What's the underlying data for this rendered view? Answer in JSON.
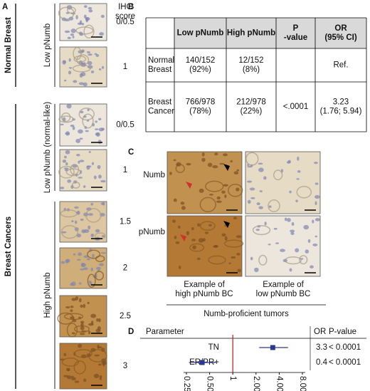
{
  "panel_a": {
    "label": "A",
    "header": [
      "IHC",
      "score"
    ],
    "groups": [
      {
        "name": "Normal Breast",
        "subgroups": [
          {
            "name": "Low pNumb",
            "scores": [
              "0/0.5",
              "1"
            ]
          }
        ]
      },
      {
        "name": "Breast Cancers",
        "subgroups": [
          {
            "name": "Low pNumb (normal-like)",
            "scores": [
              "0/0.5",
              "1"
            ]
          },
          {
            "name": "High pNumb",
            "scores": [
              "1.5",
              "2",
              "2.5",
              "3"
            ]
          }
        ]
      }
    ]
  },
  "panel_b": {
    "label": "B",
    "columns": [
      [
        "Low pNumb"
      ],
      [
        "High pNumb"
      ],
      [
        "P",
        "-value"
      ],
      [
        "OR",
        "(95% CI)"
      ]
    ],
    "rows": [
      {
        "label": [
          "Normal",
          "Breast"
        ],
        "low": [
          "140/152",
          "(92%)"
        ],
        "high": [
          "12/152",
          "(8%)"
        ],
        "or": [
          "Ref."
        ]
      },
      {
        "label": [
          "Breast",
          "Cancer"
        ],
        "low": [
          "766/978",
          "(78%)"
        ],
        "high": [
          "212/978",
          "(22%)"
        ],
        "p": [
          "<.0001"
        ],
        "or": [
          "3.23",
          "(1.76; 5.94)"
        ]
      }
    ]
  },
  "panel_c": {
    "label": "C",
    "rows": [
      "Numb",
      "pNumb"
    ],
    "columns": [
      [
        "Example of",
        "high pNumb BC"
      ],
      [
        "Example of",
        "low pNumb BC"
      ]
    ],
    "footer": "Numb-proficient tumors"
  },
  "chart_data": {
    "type": "forest",
    "label": "D",
    "parameter_header": "Parameter",
    "or_header": "OR",
    "p_header": "P-value",
    "categories": [
      "TN",
      "ER/PR+"
    ],
    "values": [
      3.3,
      0.4
    ],
    "ci_low": [
      2.2,
      0.27
    ],
    "ci_high": [
      5.2,
      0.6
    ],
    "p_values": [
      "< 0.0001",
      "< 0.0001"
    ],
    "log_x": true,
    "reference": 1,
    "xlim": [
      0.25,
      8
    ],
    "xticks": [
      {
        "value": 0.25,
        "label": "0.25"
      },
      {
        "value": 0.5,
        "label": "0.50"
      },
      1,
      {
        "value": 2,
        "label": "2.00"
      },
      {
        "value": 4,
        "label": "4.00"
      },
      {
        "value": 8,
        "label": "8.00"
      }
    ],
    "color": "#2b3a8c",
    "reference_color": "#c62828"
  }
}
